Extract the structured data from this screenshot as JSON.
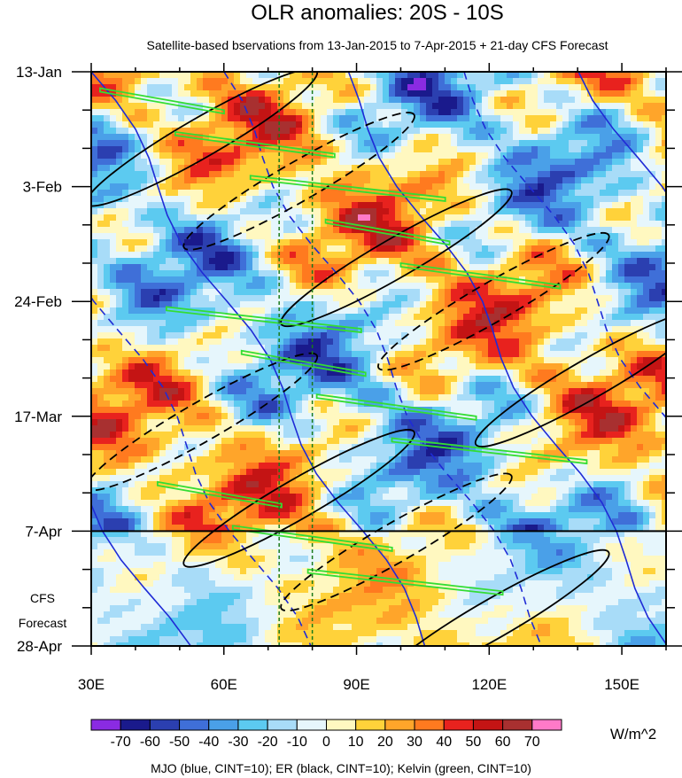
{
  "chart_data": {
    "type": "heatmap",
    "title": "OLR anomalies: 20S - 10S",
    "subtitle": "Satellite-based bservations from 13-Jan-2015 to 7-Apr-2015 + 21-day CFS Forecast",
    "x_ticks": [
      "30E",
      "60E",
      "90E",
      "120E",
      "150E"
    ],
    "x_tick_values": [
      30,
      60,
      90,
      120,
      150
    ],
    "xlim": [
      30,
      160
    ],
    "y_ticks": [
      "13-Jan",
      "3-Feb",
      "24-Feb",
      "17-Mar",
      "7-Apr",
      "28-Apr"
    ],
    "y_tick_days": [
      0,
      21,
      42,
      63,
      84,
      105
    ],
    "ylim_days": [
      0,
      105
    ],
    "forecast_start": "7-Apr",
    "forecast_label_line1": "CFS",
    "forecast_label_line2": "Forecast",
    "vertical_reference_lines": [
      72.5,
      80
    ],
    "colorbar": {
      "levels": [
        -70,
        -60,
        -50,
        -40,
        -30,
        -20,
        -10,
        0,
        10,
        20,
        30,
        40,
        50,
        60,
        70
      ],
      "labels": [
        "-70",
        "-60",
        "-50",
        "-40",
        "-30",
        "-20",
        "-10",
        "0",
        "10",
        "20",
        "30",
        "40",
        "50",
        "60",
        "70"
      ],
      "colors": [
        "#8a2be2",
        "#1a1a8c",
        "#2b3fb0",
        "#3f6fd8",
        "#4aa0e8",
        "#5ccaf0",
        "#a8dcf8",
        "#e6f6fc",
        "#fff8c0",
        "#ffd23a",
        "#ffa52a",
        "#ff7a1f",
        "#e8221e",
        "#c41414",
        "#a83030",
        "#ff7ac8"
      ],
      "units": "W/m^2"
    },
    "contours_legend": "MJO (blue, CINT=10); ER (black, CINT=10); Kelvin (green, CINT=10)",
    "contour_colors": {
      "mjo": "#1f2bd6",
      "er": "#000000",
      "kelvin": "#33dd33"
    }
  }
}
